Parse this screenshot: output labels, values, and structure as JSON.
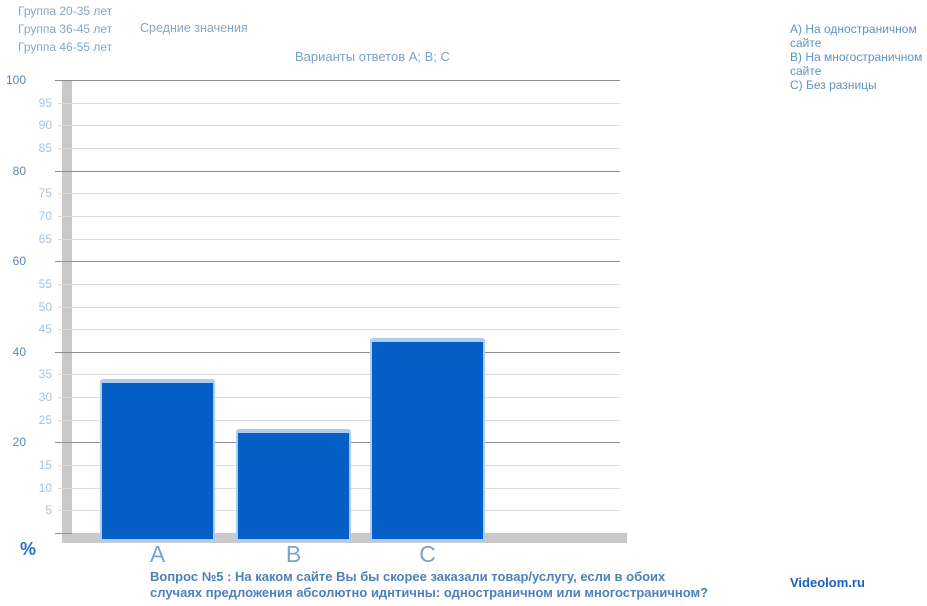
{
  "header": {
    "groups": [
      "Группа 20-35 лет",
      "Группа 36-45 лет",
      "Группа 46-55 лет"
    ],
    "series_note": "Средние значения",
    "chart_title": "Варианты ответов A; B; C"
  },
  "answer_legend": {
    "items": [
      "A) На одностраничном сайте",
      "B) На многостраничном сайте",
      "C) Без разницы"
    ]
  },
  "chart_data": {
    "type": "bar",
    "title": "Варианты ответов A; B; C",
    "categories": [
      "A",
      "B",
      "C"
    ],
    "values": [
      34,
      23,
      43
    ],
    "xlabel": "",
    "ylabel": "%",
    "ylim": [
      0,
      100
    ],
    "ytick_step": 5,
    "ytick_major_step": 20,
    "grid": true,
    "legend_position": "top-right",
    "bar_color": "#0560C6",
    "bar_highlight_color": "#AECBF0"
  },
  "footer": {
    "question_line1": "Вопрос №5 : На каком сайте Вы бы скорее заказали товар/услугу, если в обоих",
    "question_line2": "случаях предложения абсолютно иднтичны: одностраничном или многостраничном?",
    "brand": "Videolom.ru"
  },
  "colors": {
    "bar_fill": "#0560C6",
    "bar_highlight": "#AECBF0",
    "axis_gray": "#C9C9C9",
    "grid_major": "#8F8F8F",
    "grid_minor": "#DBDBDB",
    "accent_blue": "#1E70D2"
  }
}
